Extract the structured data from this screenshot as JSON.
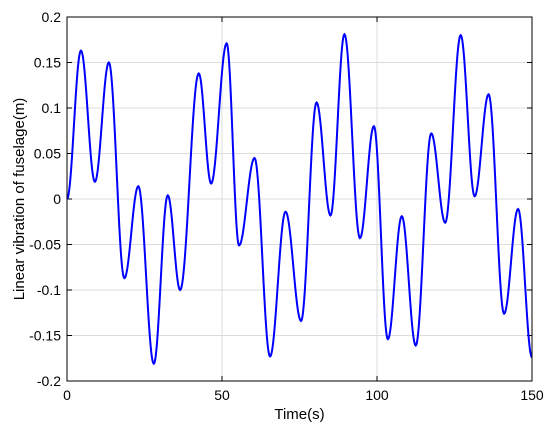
{
  "chart_data": {
    "type": "line",
    "title": "",
    "xlabel": "Time(s)",
    "ylabel": "Linear vibration of fuselage(m)",
    "xlim": [
      0,
      150
    ],
    "ylim": [
      -0.2,
      0.2
    ],
    "xticks": [
      0,
      50,
      100,
      150
    ],
    "xtick_labels": [
      "0",
      "50",
      "100",
      "150"
    ],
    "yticks": [
      -0.2,
      -0.15,
      -0.1,
      -0.05,
      0,
      0.05,
      0.1,
      0.15,
      0.2
    ],
    "ytick_labels": [
      "-0.2",
      "-0.15",
      "-0.1",
      "-0.05",
      "0",
      "0.05",
      "0.1",
      "0.15",
      "0.2"
    ],
    "grid": true,
    "line_color": "#0000ff",
    "series": [
      {
        "x": [
          0,
          4.5,
          9,
          13.5,
          18.5,
          23,
          28,
          32.5,
          36.5,
          42.5,
          46.5,
          51.5,
          55.5,
          60.5,
          65.5,
          70.5,
          75.5,
          80.5,
          85,
          89.5,
          94.5,
          99,
          103.5,
          108,
          112.5,
          117.5,
          122,
          127,
          131.5,
          136,
          141,
          145.5,
          150
        ],
        "y": [
          0,
          0.163,
          0.019,
          0.15,
          -0.087,
          0.014,
          -0.181,
          0.004,
          -0.1,
          0.138,
          0.017,
          0.171,
          -0.051,
          0.045,
          -0.173,
          -0.014,
          -0.134,
          0.106,
          -0.018,
          0.181,
          -0.043,
          0.08,
          -0.154,
          -0.019,
          -0.161,
          0.072,
          -0.026,
          0.18,
          0.003,
          0.115,
          -0.126,
          -0.011,
          -0.174
        ]
      }
    ]
  }
}
